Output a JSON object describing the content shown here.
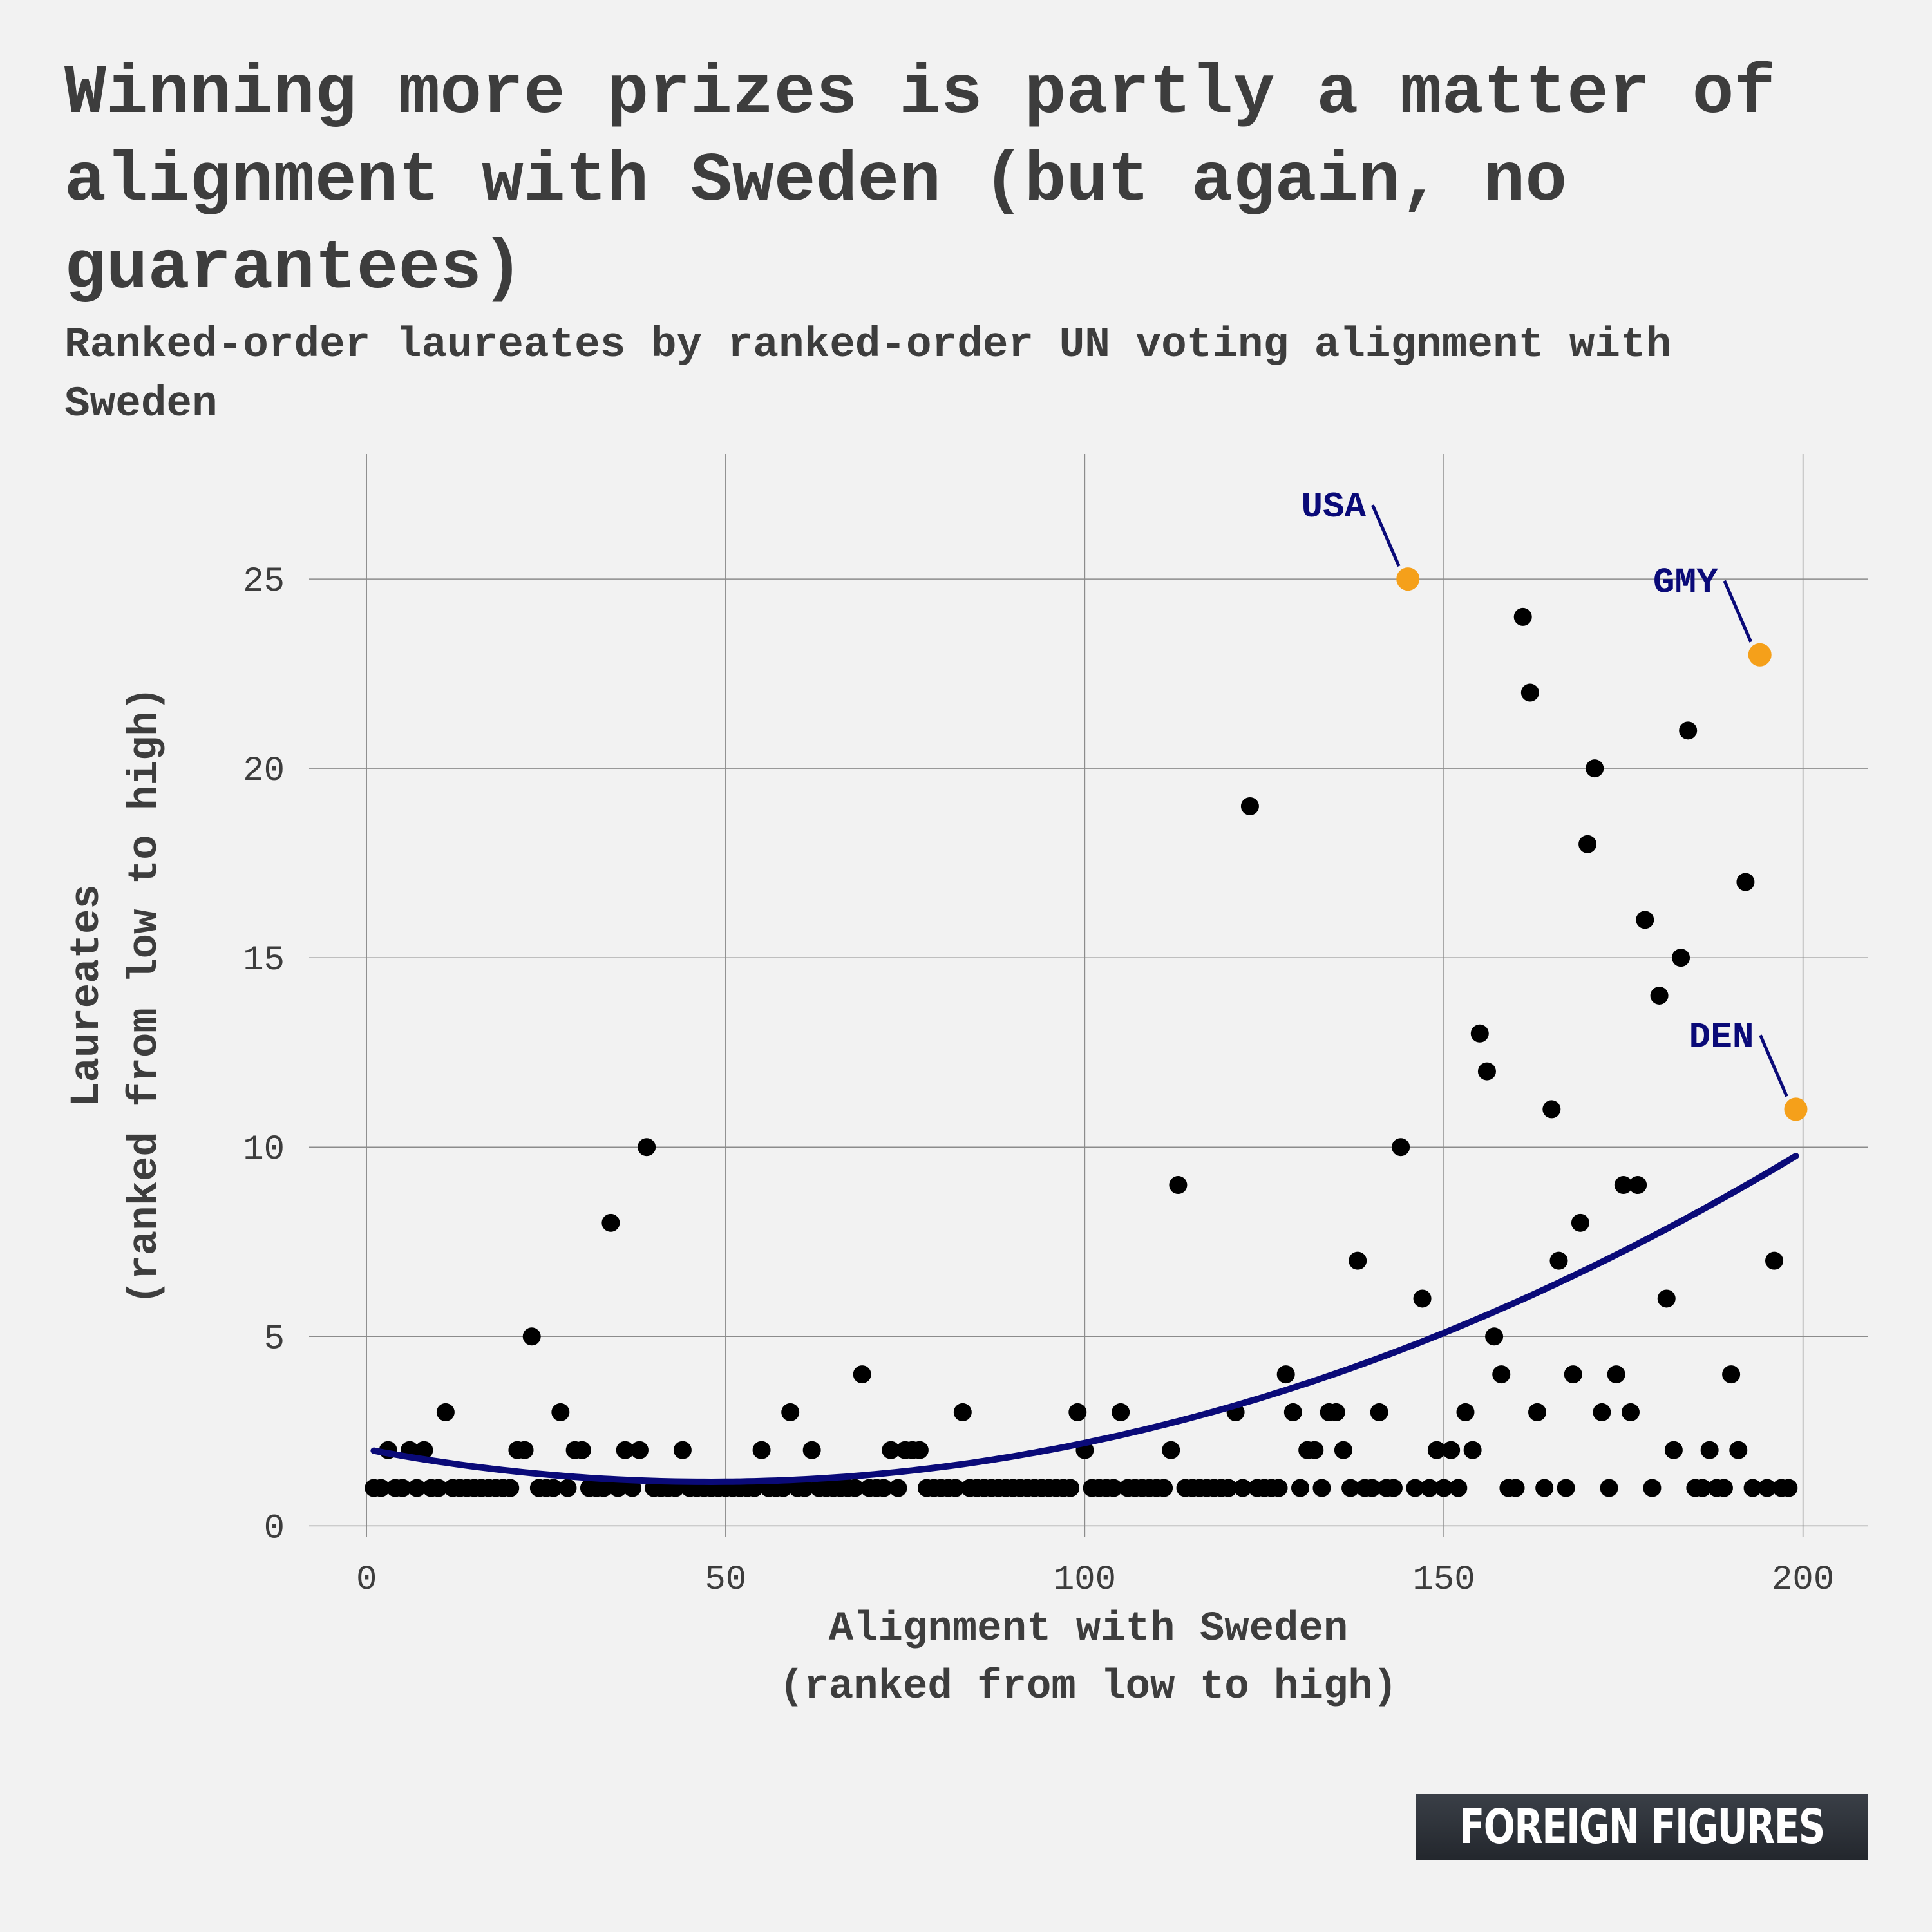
{
  "title": "Winning more prizes is partly a matter of alignment with Sweden (but again, no guarantees)",
  "subtitle": "Ranked-order laureates by ranked-order UN voting alignment with Sweden",
  "brand": "FOREIGN FIGURES",
  "colors": {
    "points": "#000000",
    "highlight": "#f5a01a",
    "fit_line": "#0a0a78",
    "annotation": "#0a0a78",
    "grid": "#8c8c8c"
  },
  "chart_data": {
    "type": "scatter",
    "title": "Winning more prizes is partly a matter of alignment with Sweden (but again, no guarantees)",
    "xlabel": "Alignment with Sweden\n(ranked from low to high)",
    "ylabel": "Laureates\n(ranked from low to high)",
    "xlim": [
      -8,
      209
    ],
    "ylim": [
      -0.3,
      28.3
    ],
    "xticks": [
      0,
      50,
      100,
      150,
      200
    ],
    "yticks": [
      0,
      5,
      10,
      15,
      20,
      25
    ],
    "grid": true,
    "points": [
      [
        1,
        1
      ],
      [
        2,
        1
      ],
      [
        3,
        2
      ],
      [
        4,
        1
      ],
      [
        5,
        1
      ],
      [
        6,
        2
      ],
      [
        7,
        1
      ],
      [
        8,
        2
      ],
      [
        9,
        1
      ],
      [
        10,
        1
      ],
      [
        11,
        3
      ],
      [
        12,
        1
      ],
      [
        13,
        1
      ],
      [
        14,
        1
      ],
      [
        15,
        1
      ],
      [
        16,
        1
      ],
      [
        17,
        1
      ],
      [
        18,
        1
      ],
      [
        19,
        1
      ],
      [
        20,
        1
      ],
      [
        21,
        2
      ],
      [
        22,
        2
      ],
      [
        23,
        5
      ],
      [
        24,
        1
      ],
      [
        25,
        1
      ],
      [
        26,
        1
      ],
      [
        27,
        3
      ],
      [
        28,
        1
      ],
      [
        29,
        2
      ],
      [
        30,
        2
      ],
      [
        31,
        1
      ],
      [
        32,
        1
      ],
      [
        33,
        1
      ],
      [
        34,
        8
      ],
      [
        35,
        1
      ],
      [
        36,
        2
      ],
      [
        37,
        1
      ],
      [
        38,
        2
      ],
      [
        39,
        10
      ],
      [
        40,
        1
      ],
      [
        41,
        1
      ],
      [
        42,
        1
      ],
      [
        43,
        1
      ],
      [
        44,
        2
      ],
      [
        45,
        1
      ],
      [
        46,
        1
      ],
      [
        47,
        1
      ],
      [
        48,
        1
      ],
      [
        49,
        1
      ],
      [
        50,
        1
      ],
      [
        51,
        1
      ],
      [
        52,
        1
      ],
      [
        53,
        1
      ],
      [
        54,
        1
      ],
      [
        55,
        2
      ],
      [
        56,
        1
      ],
      [
        57,
        1
      ],
      [
        58,
        1
      ],
      [
        59,
        3
      ],
      [
        60,
        1
      ],
      [
        61,
        1
      ],
      [
        62,
        2
      ],
      [
        63,
        1
      ],
      [
        64,
        1
      ],
      [
        65,
        1
      ],
      [
        66,
        1
      ],
      [
        67,
        1
      ],
      [
        68,
        1
      ],
      [
        69,
        4
      ],
      [
        70,
        1
      ],
      [
        71,
        1
      ],
      [
        72,
        1
      ],
      [
        73,
        2
      ],
      [
        74,
        1
      ],
      [
        75,
        2
      ],
      [
        76,
        2
      ],
      [
        77,
        2
      ],
      [
        78,
        1
      ],
      [
        79,
        1
      ],
      [
        80,
        1
      ],
      [
        81,
        1
      ],
      [
        82,
        1
      ],
      [
        83,
        3
      ],
      [
        84,
        1
      ],
      [
        85,
        1
      ],
      [
        86,
        1
      ],
      [
        87,
        1
      ],
      [
        88,
        1
      ],
      [
        89,
        1
      ],
      [
        90,
        1
      ],
      [
        91,
        1
      ],
      [
        92,
        1
      ],
      [
        93,
        1
      ],
      [
        94,
        1
      ],
      [
        95,
        1
      ],
      [
        96,
        1
      ],
      [
        97,
        1
      ],
      [
        98,
        1
      ],
      [
        99,
        3
      ],
      [
        100,
        2
      ],
      [
        101,
        1
      ],
      [
        102,
        1
      ],
      [
        103,
        1
      ],
      [
        104,
        1
      ],
      [
        105,
        3
      ],
      [
        106,
        1
      ],
      [
        107,
        1
      ],
      [
        108,
        1
      ],
      [
        109,
        1
      ],
      [
        110,
        1
      ],
      [
        111,
        1
      ],
      [
        112,
        2
      ],
      [
        113,
        9
      ],
      [
        114,
        1
      ],
      [
        115,
        1
      ],
      [
        116,
        1
      ],
      [
        117,
        1
      ],
      [
        118,
        1
      ],
      [
        119,
        1
      ],
      [
        120,
        1
      ],
      [
        121,
        3
      ],
      [
        122,
        1
      ],
      [
        123,
        19
      ],
      [
        124,
        1
      ],
      [
        125,
        1
      ],
      [
        126,
        1
      ],
      [
        127,
        1
      ],
      [
        128,
        4
      ],
      [
        129,
        3
      ],
      [
        130,
        1
      ],
      [
        131,
        2
      ],
      [
        132,
        2
      ],
      [
        133,
        1
      ],
      [
        134,
        3
      ],
      [
        135,
        3
      ],
      [
        136,
        2
      ],
      [
        137,
        1
      ],
      [
        138,
        7
      ],
      [
        139,
        1
      ],
      [
        140,
        1
      ],
      [
        141,
        3
      ],
      [
        142,
        1
      ],
      [
        143,
        1
      ],
      [
        144,
        10
      ],
      [
        146,
        1
      ],
      [
        147,
        6
      ],
      [
        148,
        1
      ],
      [
        149,
        2
      ],
      [
        150,
        1
      ],
      [
        151,
        2
      ],
      [
        152,
        1
      ],
      [
        153,
        3
      ],
      [
        154,
        2
      ],
      [
        155,
        13
      ],
      [
        156,
        12
      ],
      [
        157,
        5
      ],
      [
        158,
        4
      ],
      [
        159,
        1
      ],
      [
        160,
        1
      ],
      [
        161,
        24
      ],
      [
        162,
        22
      ],
      [
        163,
        3
      ],
      [
        164,
        1
      ],
      [
        165,
        11
      ],
      [
        166,
        7
      ],
      [
        167,
        1
      ],
      [
        168,
        4
      ],
      [
        169,
        8
      ],
      [
        170,
        18
      ],
      [
        171,
        20
      ],
      [
        172,
        3
      ],
      [
        173,
        1
      ],
      [
        174,
        4
      ],
      [
        175,
        9
      ],
      [
        176,
        3
      ],
      [
        177,
        9
      ],
      [
        178,
        16
      ],
      [
        179,
        1
      ],
      [
        180,
        14
      ],
      [
        181,
        6
      ],
      [
        182,
        2
      ],
      [
        183,
        15
      ],
      [
        184,
        21
      ],
      [
        185,
        1
      ],
      [
        186,
        1
      ],
      [
        187,
        2
      ],
      [
        188,
        1
      ],
      [
        189,
        1
      ],
      [
        190,
        4
      ],
      [
        191,
        2
      ],
      [
        192,
        17
      ],
      [
        193,
        1
      ],
      [
        195,
        1
      ],
      [
        196,
        7
      ],
      [
        197,
        1
      ],
      [
        198,
        1
      ]
    ],
    "highlighted": [
      {
        "label": "USA",
        "x": 145,
        "y": 25
      },
      {
        "label": "GMY",
        "x": 194,
        "y": 23
      },
      {
        "label": "DEN",
        "x": 199,
        "y": 11
      }
    ],
    "fit_line": {
      "type": "quadratic",
      "x_range": [
        1,
        199
      ],
      "coefficients": [
        2.02,
        -0.0359,
        0.000376
      ]
    }
  }
}
